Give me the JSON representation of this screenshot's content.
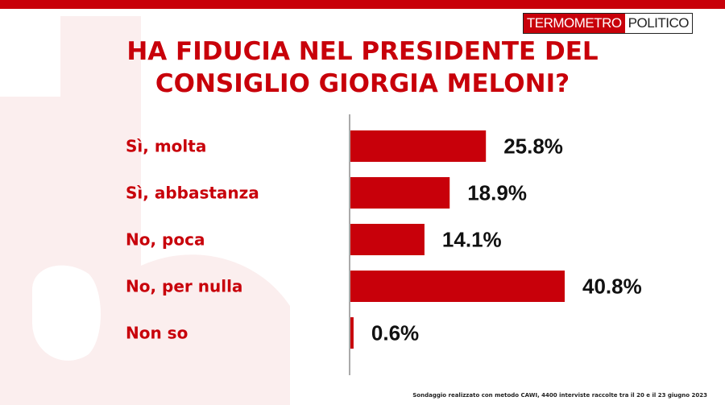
{
  "header": {
    "logo_part1": "TERMOMETRO",
    "logo_part2": "POLITICO",
    "title_line1": "HA FIDUCIA NEL PRESIDENTE DEL",
    "title_line2": "CONSIGLIO GIORGIA MELONI?"
  },
  "colors": {
    "accent": "#c8000a",
    "bar": "#c8000a",
    "text_dark": "#111111",
    "axis": "#555555",
    "watermark": "#fbeeee"
  },
  "chart_data": {
    "type": "bar",
    "orientation": "horizontal",
    "categories": [
      "Sì, molta",
      "Sì, abbastanza",
      "No, poca",
      "No, per nulla",
      "Non so"
    ],
    "values": [
      25.8,
      18.9,
      14.1,
      40.8,
      0.6
    ],
    "value_labels": [
      "25.8%",
      "18.9%",
      "14.1%",
      "40.8%",
      "0.6%"
    ],
    "unit": "%",
    "xlim": [
      0,
      40.8
    ],
    "grid": false,
    "legend": "none"
  },
  "footnote": "Sondaggio realizzato con metodo CAWI, 4400 interviste raccolte tra il 20 e il 23 giugno 2023"
}
